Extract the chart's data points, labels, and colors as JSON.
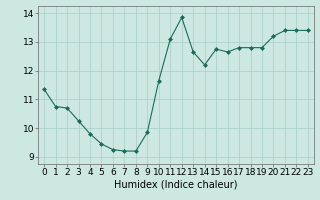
{
  "x": [
    0,
    1,
    2,
    3,
    4,
    5,
    6,
    7,
    8,
    9,
    10,
    11,
    12,
    13,
    14,
    15,
    16,
    17,
    18,
    19,
    20,
    21,
    22,
    23
  ],
  "y": [
    11.35,
    10.75,
    10.7,
    10.25,
    9.8,
    9.45,
    9.25,
    9.2,
    9.2,
    9.85,
    11.65,
    13.1,
    13.85,
    12.65,
    12.2,
    12.75,
    12.65,
    12.8,
    12.8,
    12.8,
    13.2,
    13.4,
    13.4,
    13.4
  ],
  "line_color": "#1a6b5a",
  "marker": "D",
  "marker_size": 2.0,
  "bg_color": "#cce8e0",
  "grid_color": "#a8cec8",
  "xlabel": "Humidex (Indice chaleur)",
  "xlim": [
    -0.5,
    23.5
  ],
  "ylim": [
    8.75,
    14.25
  ],
  "yticks": [
    9,
    10,
    11,
    12,
    13,
    14
  ],
  "xticks": [
    0,
    1,
    2,
    3,
    4,
    5,
    6,
    7,
    8,
    9,
    10,
    11,
    12,
    13,
    14,
    15,
    16,
    17,
    18,
    19,
    20,
    21,
    22,
    23
  ],
  "xlabel_fontsize": 7,
  "tick_fontsize": 6.5
}
